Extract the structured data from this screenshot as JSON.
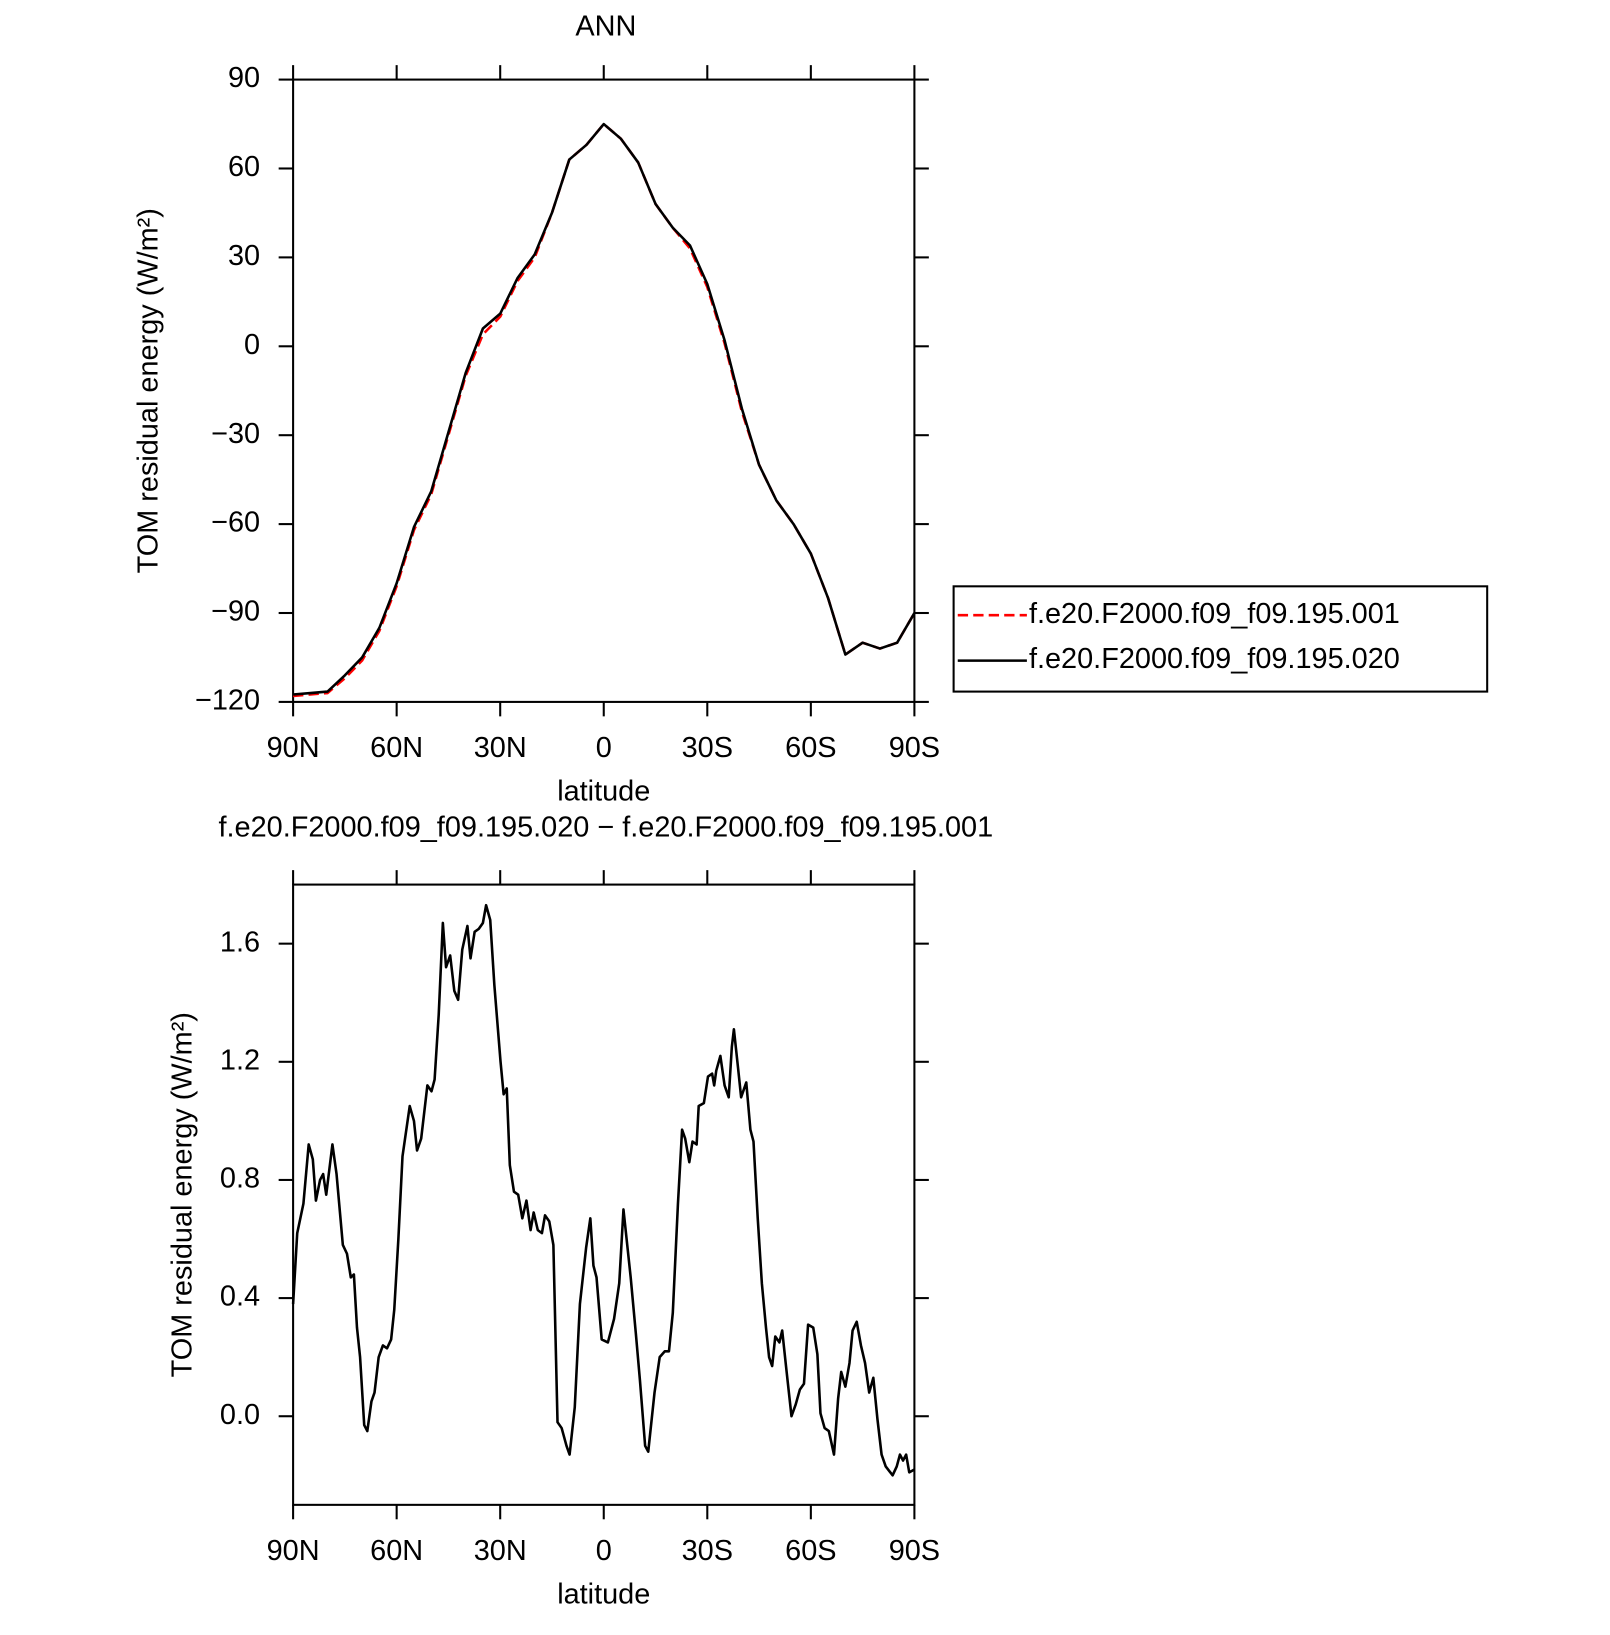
{
  "chart_data": [
    {
      "type": "line",
      "title": "ANN",
      "xlabel": "latitude",
      "ylabel": "TOM residual energy (W/m²)",
      "xlim": [
        90,
        -90
      ],
      "xticks": [
        {
          "value": 90,
          "label": "90N"
        },
        {
          "value": 60,
          "label": "60N"
        },
        {
          "value": 30,
          "label": "30N"
        },
        0,
        {
          "value": -30,
          "label": "30S"
        },
        {
          "value": -60,
          "label": "60S"
        },
        {
          "value": -90,
          "label": "90S"
        }
      ],
      "ylim": [
        -120,
        90
      ],
      "yticks": [
        90,
        60,
        30,
        0,
        {
          "value": -30,
          "label": "−30"
        },
        {
          "value": -60,
          "label": "−60"
        },
        {
          "value": -90,
          "label": "−90"
        },
        {
          "value": -120,
          "label": "−120"
        }
      ],
      "legend": "outside right",
      "x": [
        90,
        85,
        80,
        75,
        70,
        65,
        60,
        55,
        50,
        45,
        40,
        35,
        30,
        25,
        20,
        15,
        10,
        5,
        0,
        -5,
        -10,
        -15,
        -20,
        -25,
        -30,
        -35,
        -40,
        -45,
        -50,
        -55,
        -60,
        -65,
        -70,
        -75,
        -80,
        -85,
        -90
      ],
      "series": [
        {
          "name": "f.e20.F2000.f09_f09.195.001",
          "color": "#ff0000",
          "line_style": "dashed",
          "values": [
            -118,
            -117.5,
            -117,
            -112,
            -106,
            -96,
            -81,
            -62,
            -50,
            -30,
            -10,
            4,
            10,
            22,
            30,
            45,
            63,
            68,
            75,
            70,
            62,
            48,
            40,
            33,
            20,
            1,
            -22,
            -40,
            -52,
            -60,
            -70,
            -85,
            -104,
            -100,
            -102,
            -100,
            -90
          ]
        },
        {
          "name": "f.e20.F2000.f09_f09.195.020",
          "color": "#000000",
          "line_style": "solid",
          "values": [
            -117.5,
            -117,
            -116.5,
            -111,
            -105,
            -95,
            -80,
            -61,
            -49,
            -29,
            -9,
            6,
            11,
            23,
            31,
            45,
            63,
            68,
            75,
            70,
            62,
            48,
            40,
            34,
            21,
            2,
            -21,
            -40,
            -52,
            -60,
            -70,
            -85,
            -104,
            -100,
            -102,
            -100,
            -90
          ]
        }
      ]
    },
    {
      "type": "line",
      "title": "f.e20.F2000.f09_f09.195.020 − f.e20.F2000.f09_f09.195.001",
      "xlabel": "latitude",
      "ylabel": "TOM residual energy (W/m²)",
      "xlim": [
        90,
        -90
      ],
      "xticks": [
        {
          "value": 90,
          "label": "90N"
        },
        {
          "value": 60,
          "label": "60N"
        },
        {
          "value": 30,
          "label": "30N"
        },
        0,
        {
          "value": -30,
          "label": "30S"
        },
        {
          "value": -60,
          "label": "60S"
        },
        {
          "value": -90,
          "label": "90S"
        }
      ],
      "ylim": [
        -0.3,
        1.8
      ],
      "yticks": [
        1.6,
        1.2,
        0.8,
        0.4,
        {
          "value": 0,
          "label": "0.0"
        }
      ],
      "x": [
        90,
        88.8,
        87,
        85.5,
        84.3,
        83.4,
        82.2,
        81.3,
        80.4,
        78.6,
        77.4,
        75.6,
        74.4,
        73.3,
        72.4,
        71.5,
        70.6,
        69.4,
        68.5,
        67.3,
        66.4,
        65.2,
        64,
        62.8,
        61.6,
        60.7,
        59.5,
        58.3,
        56.2,
        55,
        54.1,
        52.9,
        51.1,
        49.9,
        49,
        47.8,
        46.6,
        45.7,
        44.5,
        43.3,
        42.2,
        41,
        39.5,
        38.6,
        37.4,
        36.2,
        35,
        34.1,
        32.9,
        31.7,
        29.9,
        29,
        28.1,
        27.2,
        26,
        24.8,
        23.6,
        22.4,
        21.2,
        20.3,
        19.1,
        17.9,
        17,
        15.8,
        14.6,
        13.4,
        12.2,
        10.8,
        9.9,
        8.4,
        6.9,
        5.1,
        3.9,
        3,
        2.1,
        0.6,
        -1.2,
        -3,
        -4.5,
        -5.7,
        -7.8,
        -9.3,
        -10.5,
        -12,
        -12.9,
        -14.7,
        -16.2,
        -17.7,
        -18.9,
        -20,
        -21.5,
        -22.7,
        -23.6,
        -24.8,
        -25.7,
        -26.9,
        -27.5,
        -29,
        -30.2,
        -31.4,
        -32,
        -32.6,
        -33.8,
        -35,
        -36.2,
        -37.1,
        -37.7,
        -38.9,
        -39.8,
        -41.3,
        -42.5,
        -43.4,
        -44.6,
        -45.8,
        -47,
        -47.9,
        -48.8,
        -49.7,
        -50.9,
        -51.7,
        -52.9,
        -54.4,
        -55.6,
        -56.8,
        -58,
        -59.2,
        -60.7,
        -61.9,
        -62.8,
        -64,
        -65.2,
        -66.7,
        -67.9,
        -68.8,
        -70,
        -71.2,
        -72.1,
        -73.3,
        -74.5,
        -75.7,
        -76.9,
        -78.1,
        -79.3,
        -80.5,
        -81.7,
        -83.7,
        -84.9,
        -85.8,
        -86.7,
        -87.6,
        -88.5,
        -90
      ],
      "series": [
        {
          "color": "#000000",
          "values": [
            0.38,
            0.62,
            0.72,
            0.92,
            0.87,
            0.73,
            0.8,
            0.82,
            0.75,
            0.92,
            0.82,
            0.58,
            0.55,
            0.47,
            0.48,
            0.3,
            0.2,
            -0.03,
            -0.05,
            0.05,
            0.08,
            0.2,
            0.24,
            0.23,
            0.26,
            0.36,
            0.6,
            0.88,
            1.05,
            1.0,
            0.9,
            0.94,
            1.12,
            1.1,
            1.14,
            1.36,
            1.67,
            1.52,
            1.56,
            1.44,
            1.41,
            1.58,
            1.66,
            1.55,
            1.64,
            1.65,
            1.67,
            1.73,
            1.68,
            1.46,
            1.2,
            1.09,
            1.11,
            0.85,
            0.76,
            0.75,
            0.67,
            0.73,
            0.63,
            0.69,
            0.63,
            0.62,
            0.68,
            0.66,
            0.58,
            -0.02,
            -0.04,
            -0.1,
            -0.13,
            0.03,
            0.38,
            0.57,
            0.67,
            0.51,
            0.47,
            0.26,
            0.25,
            0.33,
            0.45,
            0.7,
            0.47,
            0.28,
            0.12,
            -0.1,
            -0.12,
            0.08,
            0.2,
            0.22,
            0.22,
            0.35,
            0.72,
            0.97,
            0.94,
            0.86,
            0.93,
            0.92,
            1.05,
            1.06,
            1.15,
            1.16,
            1.12,
            1.17,
            1.22,
            1.12,
            1.08,
            1.25,
            1.31,
            1.18,
            1.08,
            1.13,
            0.97,
            0.93,
            0.67,
            0.45,
            0.3,
            0.2,
            0.17,
            0.27,
            0.25,
            0.29,
            0.16,
            0.0,
            0.04,
            0.09,
            0.11,
            0.31,
            0.3,
            0.21,
            0.01,
            -0.04,
            -0.05,
            -0.13,
            0.06,
            0.15,
            0.1,
            0.18,
            0.29,
            0.32,
            0.24,
            0.18,
            0.08,
            0.13,
            -0.01,
            -0.13,
            -0.17,
            -0.2,
            -0.17,
            -0.13,
            -0.15,
            -0.13,
            -0.19,
            -0.18
          ]
        }
      ]
    }
  ]
}
